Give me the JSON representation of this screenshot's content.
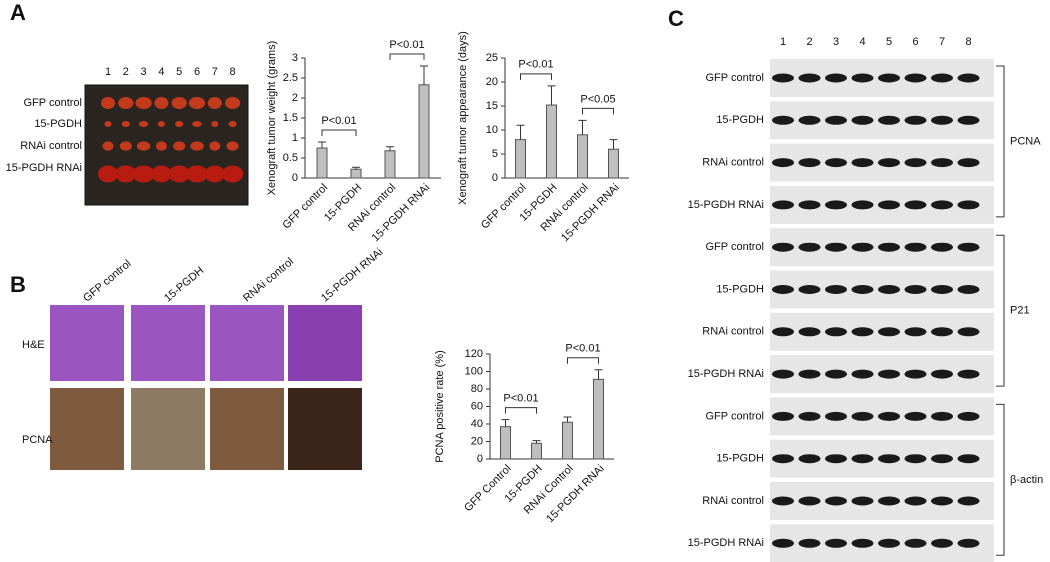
{
  "chart_data": [
    {
      "type": "bar",
      "ylabel": "Xenograft tumor weight (grams)",
      "categories": [
        "GFP control",
        "15-PGDH",
        "RNAi control",
        "15-PGDH RNAi"
      ],
      "values": [
        0.75,
        0.22,
        0.68,
        2.33
      ],
      "errors": [
        0.15,
        0.05,
        0.1,
        0.47
      ],
      "color": "#bfbfbf",
      "ylim": [
        0,
        3
      ],
      "yticks": [
        0,
        0.5,
        1,
        1.5,
        2,
        2.5,
        3
      ],
      "annotations": [
        "P<0.01",
        "P<0.01"
      ]
    },
    {
      "type": "bar",
      "ylabel": "Xenograft tumor appearance (days)",
      "categories": [
        "GFP control",
        "15-PGDH",
        "RNAi control",
        "15-PGDH RNAi"
      ],
      "values": [
        8,
        15.2,
        9,
        6
      ],
      "errors": [
        3,
        4,
        3,
        2
      ],
      "color": "#bfbfbf",
      "ylim": [
        0,
        25
      ],
      "yticks": [
        0,
        5,
        10,
        15,
        20,
        25
      ],
      "annotations": [
        "P<0.01",
        "P<0.05"
      ]
    },
    {
      "type": "bar",
      "ylabel": "PCNA positive rate (%)",
      "categories": [
        "GFP Control",
        "15-PGDH",
        "RNAi Control",
        "15-PGDH RNAi"
      ],
      "values": [
        37,
        18,
        42,
        91
      ],
      "errors": [
        8,
        3,
        6,
        11
      ],
      "color": "#bfbfbf",
      "ylim": [
        0,
        120
      ],
      "yticks": [
        0,
        20,
        40,
        60,
        80,
        100,
        120
      ],
      "annotations": [
        "P<0.01",
        "P<0.01"
      ]
    }
  ],
  "panel_labels": [
    "A",
    "B",
    "C"
  ],
  "tumor_photo": {
    "lanes": [
      1,
      2,
      3,
      4,
      5,
      6,
      7,
      8
    ],
    "rows": [
      "GFP control",
      "15-PGDH",
      "RNAi control",
      "15-PGDH RNAi"
    ]
  },
  "histology": {
    "columns": [
      "GFP control",
      "15-PGDH",
      "RNAi control",
      "15-PGDH RNAi"
    ],
    "rows": [
      "H&E",
      "PCNA"
    ]
  },
  "western_blot": {
    "lanes": [
      1,
      2,
      3,
      4,
      5,
      6,
      7,
      8
    ],
    "groups": [
      {
        "name": "PCNA",
        "rows": [
          "GFP control",
          "15-PGDH",
          "RNAi control",
          "15-PGDH RNAi"
        ]
      },
      {
        "name": "P21",
        "rows": [
          "GFP control",
          "15-PGDH",
          "RNAi control",
          "15-PGDH RNAi"
        ]
      },
      {
        "name": "β-actin",
        "rows": [
          "GFP control",
          "15-PGDH",
          "RNAi control",
          "15-PGDH RNAi"
        ]
      }
    ]
  }
}
